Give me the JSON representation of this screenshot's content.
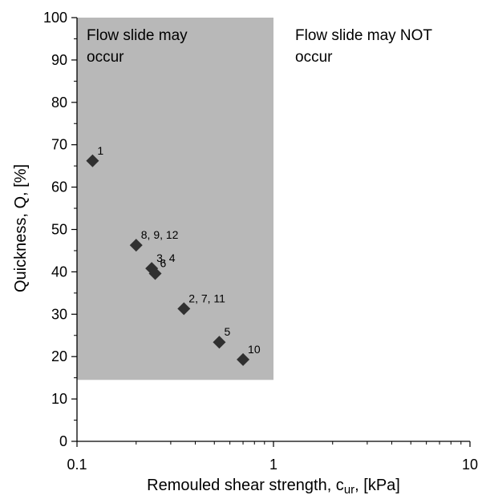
{
  "chart_data": {
    "type": "scatter",
    "title": "",
    "xlabel": "Remouled shear strength, c",
    "xlabel_sub": "ur",
    "xlabel_unit": ", [kPa]",
    "ylabel": "Quickness, Q, [%]",
    "xscale": "log",
    "xlim": [
      0.1,
      10
    ],
    "ylim": [
      0,
      100
    ],
    "xticks": [
      0.1,
      1,
      10
    ],
    "xtick_labels": [
      "0.1",
      "1",
      "10"
    ],
    "yticks": [
      0,
      10,
      20,
      30,
      40,
      50,
      60,
      70,
      80,
      90,
      100
    ],
    "ytick_labels": [
      "0",
      "10",
      "20",
      "30",
      "40",
      "50",
      "60",
      "70",
      "80",
      "90",
      "100"
    ],
    "grid": false,
    "marker_color": "#303030",
    "region": {
      "x_range": [
        0.1,
        1
      ],
      "y_range": [
        14.5,
        100
      ],
      "color": "#b8b8b8"
    },
    "region_labels": [
      {
        "line1": "Flow slide may",
        "line2": "occur"
      },
      {
        "line1": "Flow slide may NOT",
        "line2": "occur"
      }
    ],
    "points": [
      {
        "label": "1",
        "x": 0.12,
        "y": 66.2
      },
      {
        "label": "8, 9, 12",
        "x": 0.2,
        "y": 46.3
      },
      {
        "label": "3, 4",
        "x": 0.24,
        "y": 40.8
      },
      {
        "label": "6",
        "x": 0.25,
        "y": 39.6
      },
      {
        "label": "2, 7, 11",
        "x": 0.35,
        "y": 31.3
      },
      {
        "label": "5",
        "x": 0.53,
        "y": 23.4
      },
      {
        "label": "10",
        "x": 0.7,
        "y": 19.3
      }
    ]
  }
}
